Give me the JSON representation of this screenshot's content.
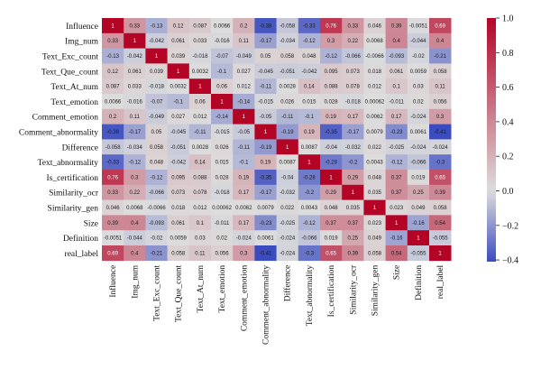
{
  "chart_data": {
    "type": "heatmap",
    "title": "",
    "xlabel": "",
    "ylabel": "",
    "variables": [
      "Influence",
      "Img_num",
      "Text_Exc_count",
      "Text_Que_count",
      "Text_At_num",
      "Text_emotion",
      "Comment_emotion",
      "Comment_abnormality",
      "Difference",
      "Text_abnormality",
      "Is_certification",
      "Similarity_ocr",
      "Similarity_gen",
      "Size",
      "Definition",
      "real_label"
    ],
    "matrix": [
      [
        1,
        0.33,
        -0.13,
        0.12,
        0.087,
        0.0066,
        0.2,
        -0.38,
        -0.058,
        -0.33,
        0.76,
        0.33,
        0.046,
        0.39,
        -0.0051,
        0.69
      ],
      [
        0.33,
        1,
        -0.042,
        0.061,
        0.033,
        -0.016,
        0.11,
        -0.17,
        -0.034,
        -0.12,
        0.3,
        0.22,
        0.0068,
        0.4,
        -0.044,
        0.4
      ],
      [
        -0.13,
        -0.042,
        1,
        0.039,
        -0.018,
        -0.07,
        -0.049,
        0.05,
        0.058,
        0.048,
        -0.12,
        -0.066,
        -0.0066,
        -0.093,
        -0.02,
        -0.21
      ],
      [
        0.12,
        0.061,
        0.039,
        1,
        0.0032,
        -0.1,
        0.027,
        -0.045,
        -0.051,
        -0.042,
        0.095,
        0.073,
        0.018,
        0.061,
        0.0059,
        0.058
      ],
      [
        0.087,
        0.033,
        -0.018,
        0.0032,
        1,
        0.06,
        0.012,
        -0.11,
        0.0028,
        0.14,
        0.088,
        0.078,
        0.012,
        0.1,
        0.03,
        0.11
      ],
      [
        0.0066,
        -0.016,
        -0.07,
        -0.1,
        0.06,
        1,
        -0.14,
        -0.015,
        0.026,
        0.015,
        0.028,
        -0.018,
        0.00062,
        -0.011,
        0.02,
        0.056
      ],
      [
        0.2,
        0.11,
        -0.049,
        0.027,
        0.012,
        -0.14,
        1,
        -0.05,
        -0.11,
        -0.1,
        0.19,
        0.17,
        0.0062,
        0.17,
        -0.024,
        0.3
      ],
      [
        -0.38,
        -0.17,
        0.05,
        -0.045,
        -0.11,
        -0.015,
        -0.05,
        1,
        -0.19,
        0.19,
        -0.35,
        -0.17,
        0.0079,
        -0.23,
        0.0061,
        -0.41
      ],
      [
        -0.058,
        -0.034,
        0.058,
        -0.051,
        0.0028,
        0.026,
        -0.11,
        -0.19,
        1,
        0.0087,
        -0.04,
        -0.032,
        0.022,
        -0.025,
        -0.024,
        -0.024
      ],
      [
        -0.33,
        -0.12,
        0.048,
        -0.042,
        0.14,
        0.015,
        -0.1,
        0.19,
        0.0087,
        1,
        -0.28,
        -0.2,
        0.0043,
        -0.12,
        -0.066,
        -0.3
      ],
      [
        0.76,
        0.3,
        -0.12,
        0.095,
        0.088,
        0.028,
        0.19,
        -0.35,
        -0.04,
        -0.28,
        1,
        0.29,
        0.048,
        0.37,
        0.019,
        0.65
      ],
      [
        0.33,
        0.22,
        -0.066,
        0.073,
        0.078,
        -0.018,
        0.17,
        -0.17,
        -0.032,
        -0.2,
        0.29,
        1,
        0.035,
        0.37,
        0.25,
        0.39
      ],
      [
        0.046,
        0.0068,
        -0.0066,
        0.018,
        0.012,
        0.00062,
        0.0062,
        0.0079,
        0.022,
        0.0043,
        0.048,
        0.035,
        1,
        0.023,
        0.049,
        0.058
      ],
      [
        0.39,
        0.4,
        -0.093,
        0.061,
        0.1,
        -0.011,
        0.17,
        -0.23,
        -0.025,
        -0.12,
        0.37,
        0.37,
        0.023,
        1,
        -0.16,
        0.54
      ],
      [
        -0.0051,
        -0.044,
        -0.02,
        0.0059,
        0.03,
        0.02,
        -0.024,
        0.0061,
        -0.024,
        -0.066,
        0.019,
        0.25,
        0.049,
        -0.16,
        1,
        -0.055
      ],
      [
        0.69,
        0.4,
        -0.21,
        0.058,
        0.11,
        0.056,
        0.3,
        -0.41,
        -0.024,
        -0.3,
        0.65,
        0.39,
        0.058,
        0.54,
        -0.055,
        1
      ]
    ],
    "colorbar": {
      "vmin": -0.41,
      "vmax": 1.0,
      "ticks": [
        "1.0",
        "0.8",
        "0.6",
        "0.4",
        "0.2",
        "0.0",
        "−0.2",
        "−0.4"
      ],
      "colormap": "coolwarm",
      "low_color": "#3b4cc0",
      "mid_color": "#dddddd",
      "high_color": "#b40426"
    },
    "grid": false,
    "legend": "colorbar-right"
  }
}
